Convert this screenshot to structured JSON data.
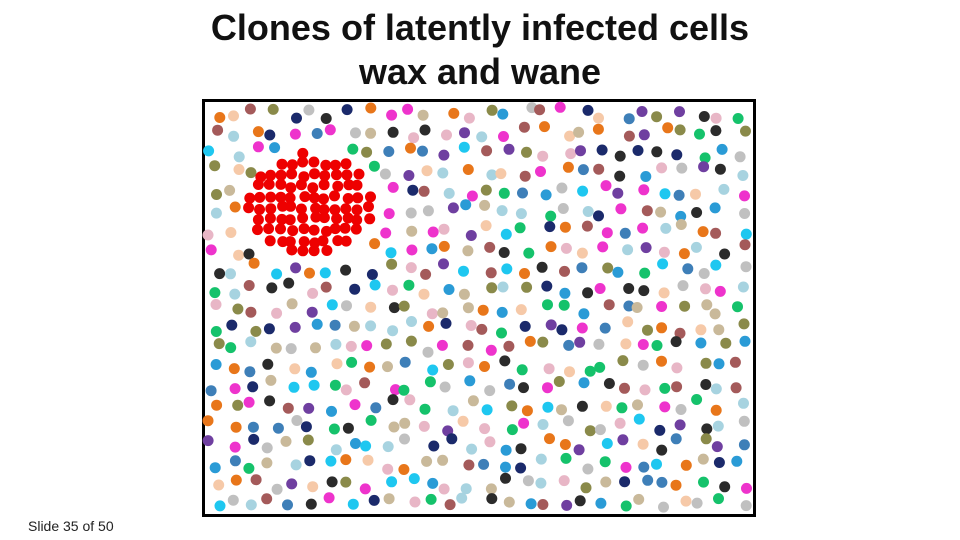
{
  "slide": {
    "title_line1": "Clones of latently infected cells",
    "title_line2": "wax and wane",
    "footer": "Slide 35 of 50"
  },
  "illustration": {
    "description": "",
    "clone_color": "#ee0000",
    "palette": [
      "#15c26b",
      "#2a9bd6",
      "#a45a5a",
      "#1b2a6b",
      "#8a8a4a",
      "#c9b99a",
      "#ee33cc",
      "#2b2b2b",
      "#1ec7f0",
      "#c0c0c0",
      "#6f3fa0",
      "#f6c9a8",
      "#3e7fb8",
      "#e8b6c6",
      "#e8761a",
      "#a7d3e0"
    ]
  }
}
